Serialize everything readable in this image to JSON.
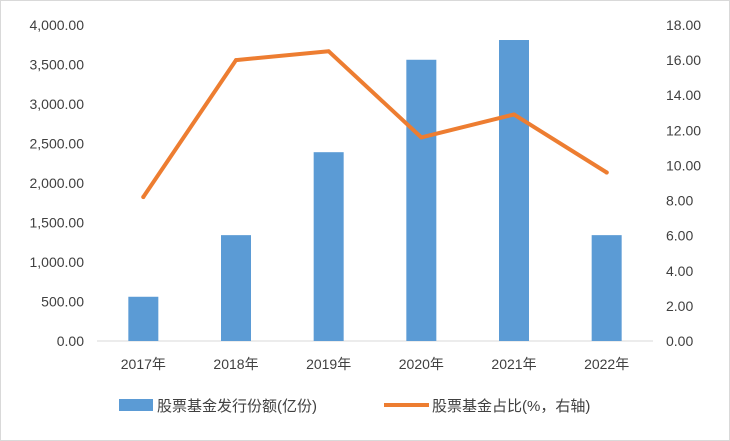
{
  "chart_data": {
    "type": "bar",
    "title": "",
    "xlabel": "",
    "ylabel": "",
    "categories": [
      "2017年",
      "2018年",
      "2019年",
      "2020年",
      "2021年",
      "2022年"
    ],
    "series": [
      {
        "name": "股票基金发行份额(亿份)",
        "type": "bar",
        "axis": "left",
        "color": "#5b9bd5",
        "values": [
          560,
          1340,
          2390,
          3560,
          3810,
          1340
        ]
      },
      {
        "name": "股票基金占比(%，右轴)",
        "type": "line",
        "axis": "right",
        "color": "#ed7d31",
        "values": [
          8.2,
          16.0,
          16.5,
          11.6,
          12.9,
          9.6
        ]
      }
    ],
    "ylim": [
      0,
      4000
    ],
    "y2lim": [
      0,
      18
    ],
    "yticks": [
      "0.00",
      "500.00",
      "1,000.00",
      "1,500.00",
      "2,000.00",
      "2,500.00",
      "3,000.00",
      "3,500.00",
      "4,000.00"
    ],
    "y2ticks": [
      "0.00",
      "2.00",
      "4.00",
      "6.00",
      "8.00",
      "10.00",
      "12.00",
      "14.00",
      "16.00",
      "18.00"
    ],
    "grid": false,
    "legend": "bottom"
  }
}
